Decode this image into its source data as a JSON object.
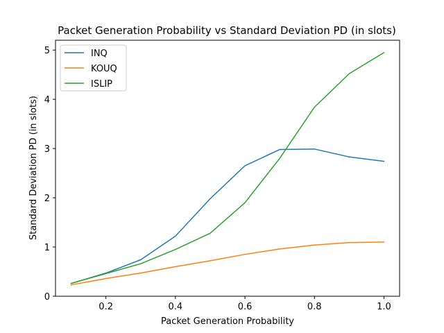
{
  "chart_data": {
    "type": "line",
    "title": "Packet Generation Probability vs Standard Deviation PD (in slots)",
    "xlabel": "Packet Generation Probability",
    "ylabel": "Standard Deviation PD (in slots)",
    "xlim": [
      0.055,
      1.045
    ],
    "ylim": [
      0,
      5.2
    ],
    "xticks": [
      0.2,
      0.4,
      0.6,
      0.8,
      1.0
    ],
    "xtick_labels": [
      "0.2",
      "0.4",
      "0.6",
      "0.8",
      "1.0"
    ],
    "yticks": [
      0,
      1,
      2,
      3,
      4,
      5
    ],
    "ytick_labels": [
      "0",
      "1",
      "2",
      "3",
      "4",
      "5"
    ],
    "grid": false,
    "legend_position": "top-left",
    "x": [
      0.1,
      0.2,
      0.3,
      0.4,
      0.5,
      0.6,
      0.7,
      0.8,
      0.9,
      1.0
    ],
    "series": [
      {
        "name": "INQ",
        "color": "#1f77b4",
        "values": [
          0.26,
          0.47,
          0.74,
          1.22,
          1.98,
          2.65,
          2.98,
          2.99,
          2.83,
          2.74
        ]
      },
      {
        "name": "KOUQ",
        "color": "#ff7f0e",
        "values": [
          0.23,
          0.36,
          0.47,
          0.6,
          0.72,
          0.85,
          0.96,
          1.04,
          1.09,
          1.1
        ]
      },
      {
        "name": "ISLIP",
        "color": "#2ca02c",
        "values": [
          0.26,
          0.46,
          0.66,
          0.95,
          1.28,
          1.9,
          2.8,
          3.84,
          4.52,
          4.95
        ]
      }
    ]
  }
}
